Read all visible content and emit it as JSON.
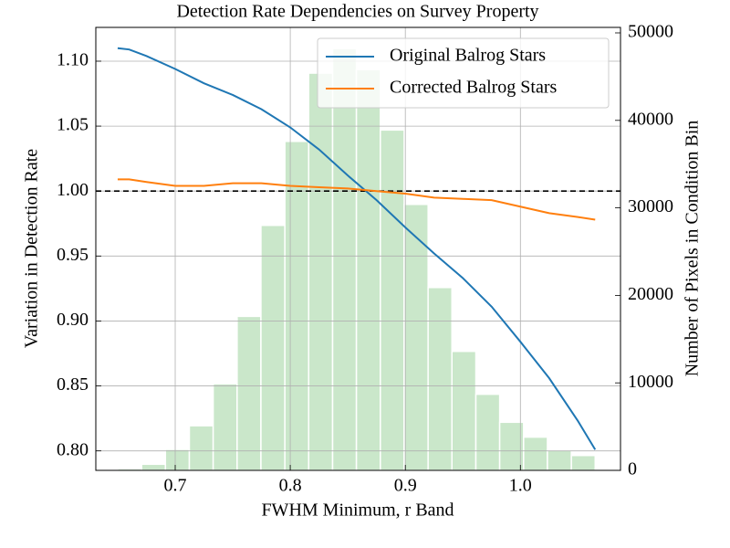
{
  "chart_data": {
    "type": "line",
    "title": "Detection Rate Dependencies on Survey Property",
    "xlabel": "FWHM Minimum, r Band",
    "ylabel": "Variation in Detection Rate",
    "y2label": "Number of Pixels in Condition Bin",
    "x": [
      0.65,
      0.66,
      0.675,
      0.7,
      0.725,
      0.75,
      0.775,
      0.8,
      0.825,
      0.85,
      0.875,
      0.9,
      0.925,
      0.95,
      0.975,
      1.0,
      1.025,
      1.05,
      1.065
    ],
    "series": [
      {
        "name": "Original Balrog Stars",
        "color": "#1f77b4",
        "values": [
          1.11,
          1.109,
          1.104,
          1.094,
          1.083,
          1.074,
          1.063,
          1.049,
          1.032,
          1.012,
          0.993,
          0.972,
          0.952,
          0.933,
          0.911,
          0.884,
          0.856,
          0.823,
          0.801
        ]
      },
      {
        "name": "Corrected Balrog Stars",
        "color": "#ff7f0e",
        "values": [
          1.009,
          1.009,
          1.007,
          1.004,
          1.004,
          1.006,
          1.006,
          1.004,
          1.003,
          1.002,
          1.0,
          0.998,
          0.995,
          0.994,
          0.993,
          0.988,
          0.983,
          0.98,
          0.978
        ]
      }
    ],
    "histogram": {
      "bins": [
        0.65,
        0.6708,
        0.6915,
        0.7123,
        0.733,
        0.7538,
        0.7745,
        0.7953,
        0.816,
        0.8368,
        0.8575,
        0.8783,
        0.899,
        0.9198,
        0.9405,
        0.9613,
        0.982,
        1.0028,
        1.0235,
        1.0443,
        1.065
      ],
      "counts": [
        200,
        700,
        2400,
        5100,
        9900,
        17600,
        28000,
        37600,
        45400,
        48200,
        45800,
        38900,
        30400,
        20900,
        13600,
        8700,
        5500,
        3800,
        2300,
        1700
      ],
      "color": "#2ca02c",
      "axis": "y2"
    },
    "hline": 1.0,
    "xlim": [
      0.631,
      1.087
    ],
    "xticks": [
      0.7,
      0.8,
      0.9,
      {
        "value": 1.0,
        "label": "1.0"
      }
    ],
    "ylim": [
      0.785,
      1.126
    ],
    "yticks": [
      {
        "value": 0.8,
        "label": "0.80"
      },
      {
        "value": 0.85,
        "label": "0.85"
      },
      {
        "value": 0.9,
        "label": "0.90"
      },
      0.95,
      {
        "value": 1.0,
        "label": "1.00"
      },
      1.05,
      {
        "value": 1.1,
        "label": "1.10"
      }
    ],
    "y2lim": [
      0,
      50626
    ],
    "y2ticks": [
      0,
      10000,
      20000,
      30000,
      40000,
      50000
    ],
    "grid": true,
    "legend": "upper right"
  }
}
